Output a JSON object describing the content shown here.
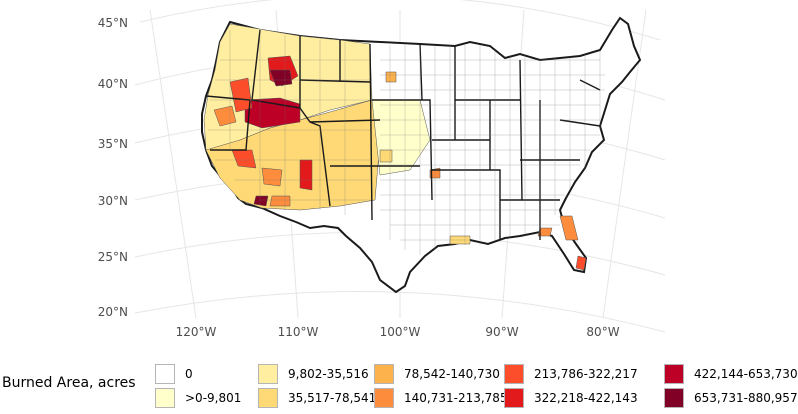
{
  "latitude_labels": [
    "45°N",
    "40°N",
    "35°N",
    "30°N",
    "25°N",
    "20°N"
  ],
  "longitude_labels": [
    "120°W",
    "110°W",
    "100°W",
    "90°W",
    "80°W"
  ],
  "legend": {
    "title": "Burned Area, acres",
    "items": [
      {
        "label": "0",
        "color": "#ffffff"
      },
      {
        "label": ">0-9,801",
        "color": "#ffffcc"
      },
      {
        "label": "9,802-35,516",
        "color": "#ffeda0"
      },
      {
        "label": "35,517-78,541",
        "color": "#fed976"
      },
      {
        "label": "78,542-140,730",
        "color": "#feb24c"
      },
      {
        "label": "140,731-213,785",
        "color": "#fd8d3c"
      },
      {
        "label": "213,786-322,217",
        "color": "#fc4e2a"
      },
      {
        "label": "322,218-422,143",
        "color": "#e31a1c"
      },
      {
        "label": "422,144-653,730",
        "color": "#bd0026"
      },
      {
        "label": "653,731-880,957",
        "color": "#800026"
      }
    ]
  }
}
